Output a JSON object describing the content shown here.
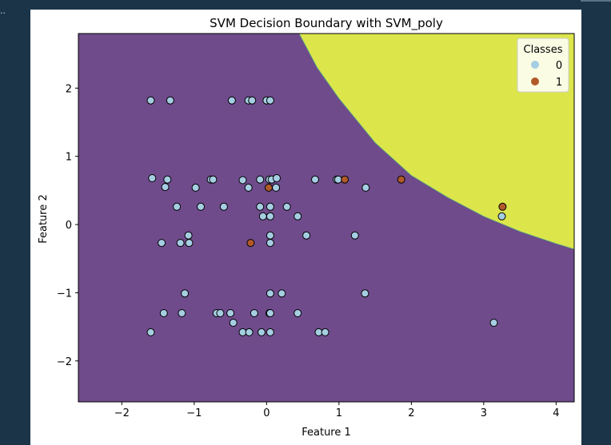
{
  "chart_data": {
    "type": "scatter",
    "title": "SVM Decision Boundary with SVM_poly",
    "xlabel": "Feature 1",
    "ylabel": "Feature 2",
    "xlim": [
      -2.6,
      4.25
    ],
    "ylim": [
      -2.6,
      2.8
    ],
    "xticks": [
      -2,
      -1,
      0,
      1,
      2,
      3,
      4
    ],
    "yticks": [
      -2,
      -1,
      0,
      1,
      2
    ],
    "xtick_labels": [
      "−2",
      "−1",
      "0",
      "1",
      "2",
      "3",
      "4"
    ],
    "ytick_labels": [
      "−2",
      "−1",
      "0",
      "1",
      "2"
    ],
    "grid": false,
    "legend": {
      "title": "Classes",
      "placement": "upper-right",
      "entries": [
        "0",
        "1"
      ]
    },
    "regions": {
      "class_0_color": "#6f4b8b",
      "class_1_color": "#dce64b",
      "boundary_points": [
        [
          0.45,
          2.8
        ],
        [
          0.7,
          2.3
        ],
        [
          1.0,
          1.85
        ],
        [
          1.5,
          1.2
        ],
        [
          2.0,
          0.72
        ],
        [
          2.5,
          0.4
        ],
        [
          3.0,
          0.12
        ],
        [
          3.5,
          -0.1
        ],
        [
          4.0,
          -0.28
        ],
        [
          4.25,
          -0.36
        ]
      ]
    },
    "series": [
      {
        "name": "0",
        "color": "#a6cee3",
        "points": [
          [
            -1.6,
            1.82
          ],
          [
            -1.33,
            1.82
          ],
          [
            -0.48,
            1.82
          ],
          [
            -0.25,
            1.82
          ],
          [
            -0.2,
            1.82
          ],
          [
            0.0,
            1.82
          ],
          [
            0.05,
            1.82
          ],
          [
            -1.58,
            0.68
          ],
          [
            -1.37,
            0.66
          ],
          [
            -1.4,
            0.55
          ],
          [
            -0.98,
            0.54
          ],
          [
            -0.77,
            0.66
          ],
          [
            -0.74,
            0.66
          ],
          [
            -0.33,
            0.65
          ],
          [
            -0.25,
            0.54
          ],
          [
            -0.09,
            0.66
          ],
          [
            0.04,
            0.66
          ],
          [
            0.07,
            0.66
          ],
          [
            0.13,
            0.54
          ],
          [
            0.14,
            0.68
          ],
          [
            0.97,
            0.66
          ],
          [
            0.99,
            0.66
          ],
          [
            0.67,
            0.66
          ],
          [
            1.37,
            0.54
          ],
          [
            -1.24,
            0.26
          ],
          [
            -0.91,
            0.26
          ],
          [
            -0.59,
            0.26
          ],
          [
            -0.09,
            0.26
          ],
          [
            0.05,
            0.26
          ],
          [
            0.28,
            0.26
          ],
          [
            -0.05,
            0.12
          ],
          [
            0.05,
            0.12
          ],
          [
            0.43,
            0.12
          ],
          [
            3.25,
            0.12
          ],
          [
            -1.08,
            -0.16
          ],
          [
            0.05,
            -0.16
          ],
          [
            0.55,
            -0.16
          ],
          [
            1.22,
            -0.16
          ],
          [
            -1.45,
            -0.27
          ],
          [
            -1.19,
            -0.27
          ],
          [
            -1.07,
            -0.27
          ],
          [
            0.05,
            -0.27
          ],
          [
            -1.13,
            -1.01
          ],
          [
            0.05,
            -1.01
          ],
          [
            0.21,
            -1.01
          ],
          [
            1.36,
            -1.01
          ],
          [
            -1.42,
            -1.3
          ],
          [
            -1.17,
            -1.3
          ],
          [
            -0.69,
            -1.3
          ],
          [
            -0.64,
            -1.3
          ],
          [
            -0.5,
            -1.3
          ],
          [
            -0.17,
            -1.3
          ],
          [
            0.04,
            -1.3
          ],
          [
            0.05,
            -1.3
          ],
          [
            0.43,
            -1.3
          ],
          [
            -0.46,
            -1.44
          ],
          [
            3.14,
            -1.44
          ],
          [
            -1.6,
            -1.58
          ],
          [
            -0.33,
            -1.58
          ],
          [
            -0.24,
            -1.58
          ],
          [
            -0.07,
            -1.58
          ],
          [
            0.05,
            -1.58
          ],
          [
            0.72,
            -1.58
          ],
          [
            0.81,
            -1.58
          ]
        ]
      },
      {
        "name": "1",
        "color": "#b15928",
        "points": [
          [
            1.08,
            0.66
          ],
          [
            1.86,
            0.66
          ],
          [
            0.03,
            0.54
          ],
          [
            3.26,
            0.26
          ],
          [
            -0.22,
            -0.27
          ]
        ]
      }
    ]
  }
}
